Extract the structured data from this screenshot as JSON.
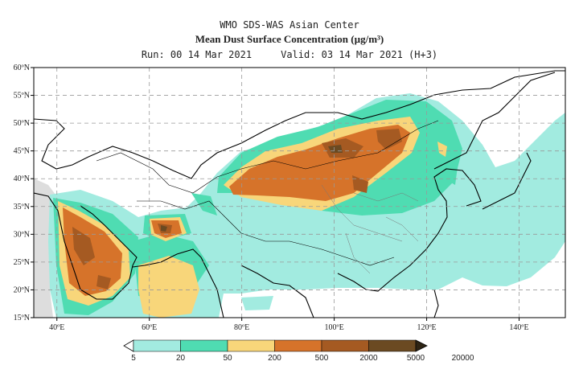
{
  "header": {
    "center": "WMO SDS-WAS Asian Center",
    "title": "Mean Dust Surface Concentration (µg/m³)",
    "run_label": "Run: 00 14 Mar 2021",
    "valid_label": "Valid: 03 14 Mar 2021 (H+3)"
  },
  "map": {
    "lon_ticks": [
      "40ºE",
      "60ºE",
      "80ºE",
      "100ºE",
      "120ºE",
      "140ºE"
    ],
    "lat_ticks": [
      "60ºN",
      "55ºN",
      "50ºN",
      "45ºN",
      "40ºN",
      "35ºN",
      "30ºN",
      "25ºN",
      "20ºN",
      "15ºN"
    ]
  },
  "colorbar": {
    "labels": [
      "5",
      "20",
      "50",
      "200",
      "500",
      "2000",
      "5000",
      "20000"
    ],
    "colors": [
      "#a2ebe0",
      "#4fdcb2",
      "#f8d67a",
      "#d6732a",
      "#a55a22",
      "#6b4a22",
      "#2e2414"
    ]
  },
  "colors": {
    "c1": "#a2ebe0",
    "c2": "#4fdcb2",
    "c3": "#f8d67a",
    "c4": "#d6732a",
    "c5": "#a55a22",
    "c6": "#6b4a22",
    "nodata": "#dddddd"
  }
}
